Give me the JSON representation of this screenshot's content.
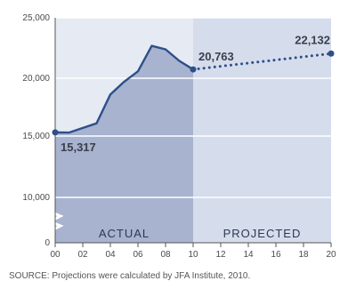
{
  "chart_data": {
    "type": "area",
    "x": [
      "00",
      "01",
      "02",
      "03",
      "04",
      "05",
      "06",
      "07",
      "08",
      "09",
      "10",
      "20"
    ],
    "series": [
      {
        "name": "ACTUAL",
        "x": [
          "00",
          "01",
          "02",
          "03",
          "04",
          "05",
          "06",
          "07",
          "08",
          "09",
          "10"
        ],
        "values": [
          15317,
          15300,
          15700,
          16100,
          18600,
          19700,
          20600,
          22800,
          22500,
          21500,
          20763
        ]
      },
      {
        "name": "PROJECTED",
        "x": [
          "10",
          "20"
        ],
        "values": [
          20763,
          22132
        ]
      }
    ],
    "xticks": [
      "00",
      "02",
      "04",
      "06",
      "08",
      "10",
      "12",
      "14",
      "16",
      "18",
      "20"
    ],
    "yticks": [
      "0",
      "10,000",
      "15,000",
      "20,000",
      "25,000"
    ],
    "axis_break": "between 0 and 10,000",
    "ylim": [
      0,
      25000
    ],
    "grid": true,
    "annotations": [
      {
        "text": "15,317",
        "x": "00",
        "y": 15317
      },
      {
        "text": "20,763",
        "x": "10",
        "y": 20763
      },
      {
        "text": "22,132",
        "x": "20",
        "y": 22132
      }
    ],
    "region_labels": {
      "actual": "ACTUAL",
      "projected": "PROJECTED"
    },
    "colors": {
      "actual_fill": "#a7b3cf",
      "projected_fill": "#d5dcec",
      "line": "#2e4f8a",
      "grid": "#ffffff"
    }
  },
  "source": "SOURCE: Projections were calculated by JFA Institute, 2010."
}
